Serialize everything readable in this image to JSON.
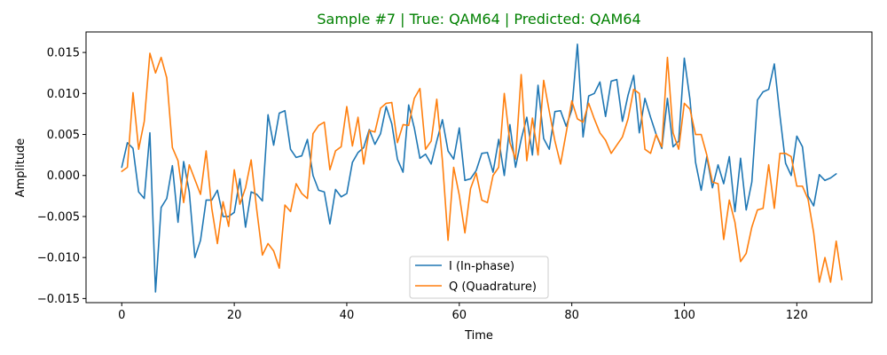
{
  "chart_data": {
    "type": "line",
    "title": "Sample #7 | True: QAM64 | Predicted: QAM64",
    "title_color": "#008000",
    "xlabel": "Time",
    "ylabel": "Amplitude",
    "xlim": [
      -6.35,
      133.35
    ],
    "ylim": [
      -0.0155,
      0.0175
    ],
    "xticks": [
      0,
      20,
      40,
      60,
      80,
      100,
      120
    ],
    "xtick_labels": [
      "0",
      "20",
      "40",
      "60",
      "80",
      "100",
      "120"
    ],
    "yticks": [
      -0.015,
      -0.01,
      -0.005,
      0.0,
      0.005,
      0.01,
      0.015
    ],
    "ytick_labels": [
      "−0.015",
      "−0.010",
      "−0.005",
      "0.000",
      "0.005",
      "0.010",
      "0.015"
    ],
    "grid": false,
    "legend_position": "lower-center",
    "series": [
      {
        "name": "I (In-phase)",
        "color": "#1f77b4",
        "values": [
          0.001,
          0.004,
          0.0033,
          -0.002,
          -0.0028,
          0.0052,
          -0.0142,
          -0.0039,
          -0.0028,
          0.0012,
          -0.0057,
          0.0017,
          -0.002,
          -0.01,
          -0.0079,
          -0.003,
          -0.003,
          -0.0018,
          -0.005,
          -0.005,
          -0.0045,
          -0.0004,
          -0.0063,
          -0.002,
          -0.0023,
          -0.0031,
          0.0074,
          0.0037,
          0.0076,
          0.0079,
          0.0032,
          0.0022,
          0.0024,
          0.0044,
          0.0,
          -0.0018,
          -0.002,
          -0.0059,
          -0.0017,
          -0.0026,
          -0.0022,
          0.0016,
          0.0028,
          0.0034,
          0.0056,
          0.0038,
          0.0051,
          0.0084,
          0.0063,
          0.002,
          0.0004,
          0.0086,
          0.0058,
          0.0021,
          0.0026,
          0.0014,
          0.0042,
          0.0068,
          0.003,
          0.002,
          0.0058,
          -0.0006,
          -0.0004,
          0.0006,
          0.0027,
          0.0028,
          0.0004,
          0.0044,
          0.0,
          0.0062,
          0.001,
          0.0044,
          0.0071,
          0.0025,
          0.011,
          0.0045,
          0.0032,
          0.0078,
          0.0079,
          0.006,
          0.008,
          0.016,
          0.0047,
          0.0097,
          0.01,
          0.0114,
          0.0072,
          0.0115,
          0.0117,
          0.0066,
          0.0098,
          0.0122,
          0.0052,
          0.0094,
          0.0071,
          0.005,
          0.0033,
          0.0094,
          0.0035,
          0.0042,
          0.0143,
          0.0093,
          0.0016,
          -0.0018,
          0.0023,
          -0.0015,
          0.0013,
          -0.001,
          0.0023,
          -0.0044,
          0.0021,
          -0.0042,
          -0.0008,
          0.0092,
          0.0102,
          0.0105,
          0.0136,
          0.0073,
          0.0015,
          0.0,
          0.0048,
          0.0035,
          -0.0025,
          -0.0037,
          0.0001,
          -0.0006,
          -0.0003,
          0.0002
        ]
      },
      {
        "name": "Q (Quadrature)",
        "color": "#ff7f0e",
        "values": [
          0.0005,
          0.001,
          0.0101,
          0.0032,
          0.0066,
          0.0149,
          0.0125,
          0.0144,
          0.0119,
          0.0034,
          0.0018,
          -0.0033,
          0.0013,
          -0.0005,
          -0.0023,
          0.003,
          -0.004,
          -0.0083,
          -0.0032,
          -0.0062,
          0.0007,
          -0.0035,
          -0.0015,
          0.0019,
          -0.0042,
          -0.0097,
          -0.0083,
          -0.0092,
          -0.0113,
          -0.0036,
          -0.0044,
          -0.001,
          -0.0022,
          -0.0028,
          0.0051,
          0.0061,
          0.0065,
          0.0007,
          0.003,
          0.0035,
          0.0084,
          0.0036,
          0.0071,
          0.0014,
          0.0055,
          0.0053,
          0.0082,
          0.0088,
          0.0089,
          0.004,
          0.0062,
          0.0061,
          0.0094,
          0.0106,
          0.0032,
          0.0042,
          0.0093,
          0.0018,
          -0.0079,
          0.001,
          -0.0024,
          -0.007,
          -0.0016,
          0.0003,
          -0.003,
          -0.0033,
          0.0,
          0.001,
          0.01,
          0.004,
          0.002,
          0.0123,
          0.0018,
          0.007,
          0.0025,
          0.0116,
          0.0078,
          0.0042,
          0.0014,
          0.0052,
          0.0091,
          0.0069,
          0.0065,
          0.0088,
          0.0069,
          0.0052,
          0.0043,
          0.0027,
          0.0037,
          0.0047,
          0.0069,
          0.0105,
          0.01,
          0.0032,
          0.0027,
          0.005,
          0.0035,
          0.0144,
          0.0052,
          0.0032,
          0.0088,
          0.0081,
          0.005,
          0.005,
          0.0025,
          -0.0008,
          -0.001,
          -0.0078,
          -0.003,
          -0.0057,
          -0.0105,
          -0.0095,
          -0.0063,
          -0.0042,
          -0.004,
          0.0013,
          -0.004,
          0.0027,
          0.0027,
          0.0023,
          -0.0013,
          -0.0013,
          -0.0029,
          -0.007,
          -0.013,
          -0.01,
          -0.013,
          -0.008,
          -0.0127
        ]
      }
    ]
  }
}
